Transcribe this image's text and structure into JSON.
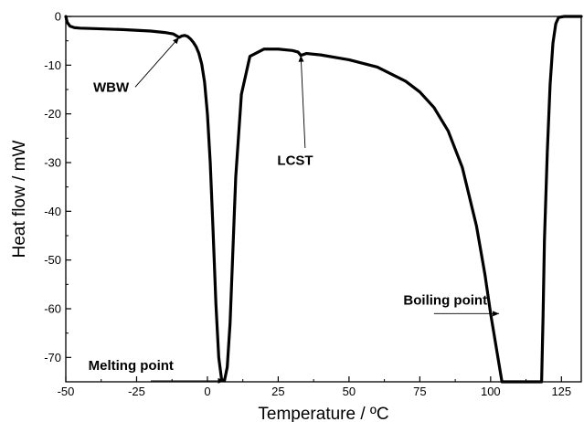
{
  "chart_data": {
    "type": "line",
    "xlabel": "Temperature / ºC",
    "ylabel": "Heat flow / mW",
    "xlim": [
      -50,
      132
    ],
    "ylim": [
      -75,
      0
    ],
    "xticks": [
      -50,
      -25,
      0,
      25,
      50,
      75,
      100,
      125
    ],
    "yticks": [
      0,
      -10,
      -20,
      -30,
      -40,
      -50,
      -60,
      -70
    ],
    "grid": false,
    "legend": "none",
    "colors": {
      "line": "#000000",
      "axis": "#000000"
    },
    "series": [
      {
        "x": [
          -50,
          -49.5,
          -48.5,
          -47,
          -45,
          -40,
          -30,
          -20,
          -15,
          -12,
          -10,
          -9,
          -8,
          -7,
          -6,
          -5,
          -4,
          -3,
          -2,
          -1,
          0,
          1,
          2,
          3,
          4,
          5,
          6,
          7,
          8,
          9,
          10,
          12,
          15,
          20,
          25,
          30,
          32,
          33,
          35,
          40,
          50,
          60,
          70,
          75,
          80,
          85,
          90,
          95,
          98,
          100,
          102,
          103,
          104,
          118,
          118.5,
          119,
          120,
          121,
          122,
          123,
          124,
          126,
          128,
          132
        ],
        "y": [
          0,
          -1.2,
          -2.0,
          -2.3,
          -2.4,
          -2.5,
          -2.7,
          -3.0,
          -3.3,
          -3.6,
          -4.3,
          -4.0,
          -3.9,
          -4.1,
          -4.6,
          -5.3,
          -6.2,
          -7.6,
          -9.8,
          -13.5,
          -20,
          -30,
          -44,
          -59,
          -70,
          -74.5,
          -74.8,
          -72,
          -63,
          -48,
          -33,
          -16,
          -8.2,
          -6.7,
          -6.7,
          -7.0,
          -7.3,
          -8.0,
          -7.6,
          -7.9,
          -8.9,
          -10.4,
          -13.3,
          -15.5,
          -18.7,
          -23.5,
          -31,
          -43,
          -53,
          -61,
          -68,
          -71.5,
          -75,
          -75,
          -62,
          -46,
          -28,
          -14,
          -5.5,
          -1.5,
          -0.2,
          0,
          0,
          0
        ]
      }
    ],
    "annotations": [
      {
        "text": "WBW",
        "x": -10,
        "y": -4.3
      },
      {
        "text": "LCST",
        "x": 33,
        "y": -8.0
      },
      {
        "text": "Melting point",
        "x": 6,
        "y": -74.8
      },
      {
        "text": "Boiling point",
        "x": 103,
        "y": -61
      }
    ]
  }
}
